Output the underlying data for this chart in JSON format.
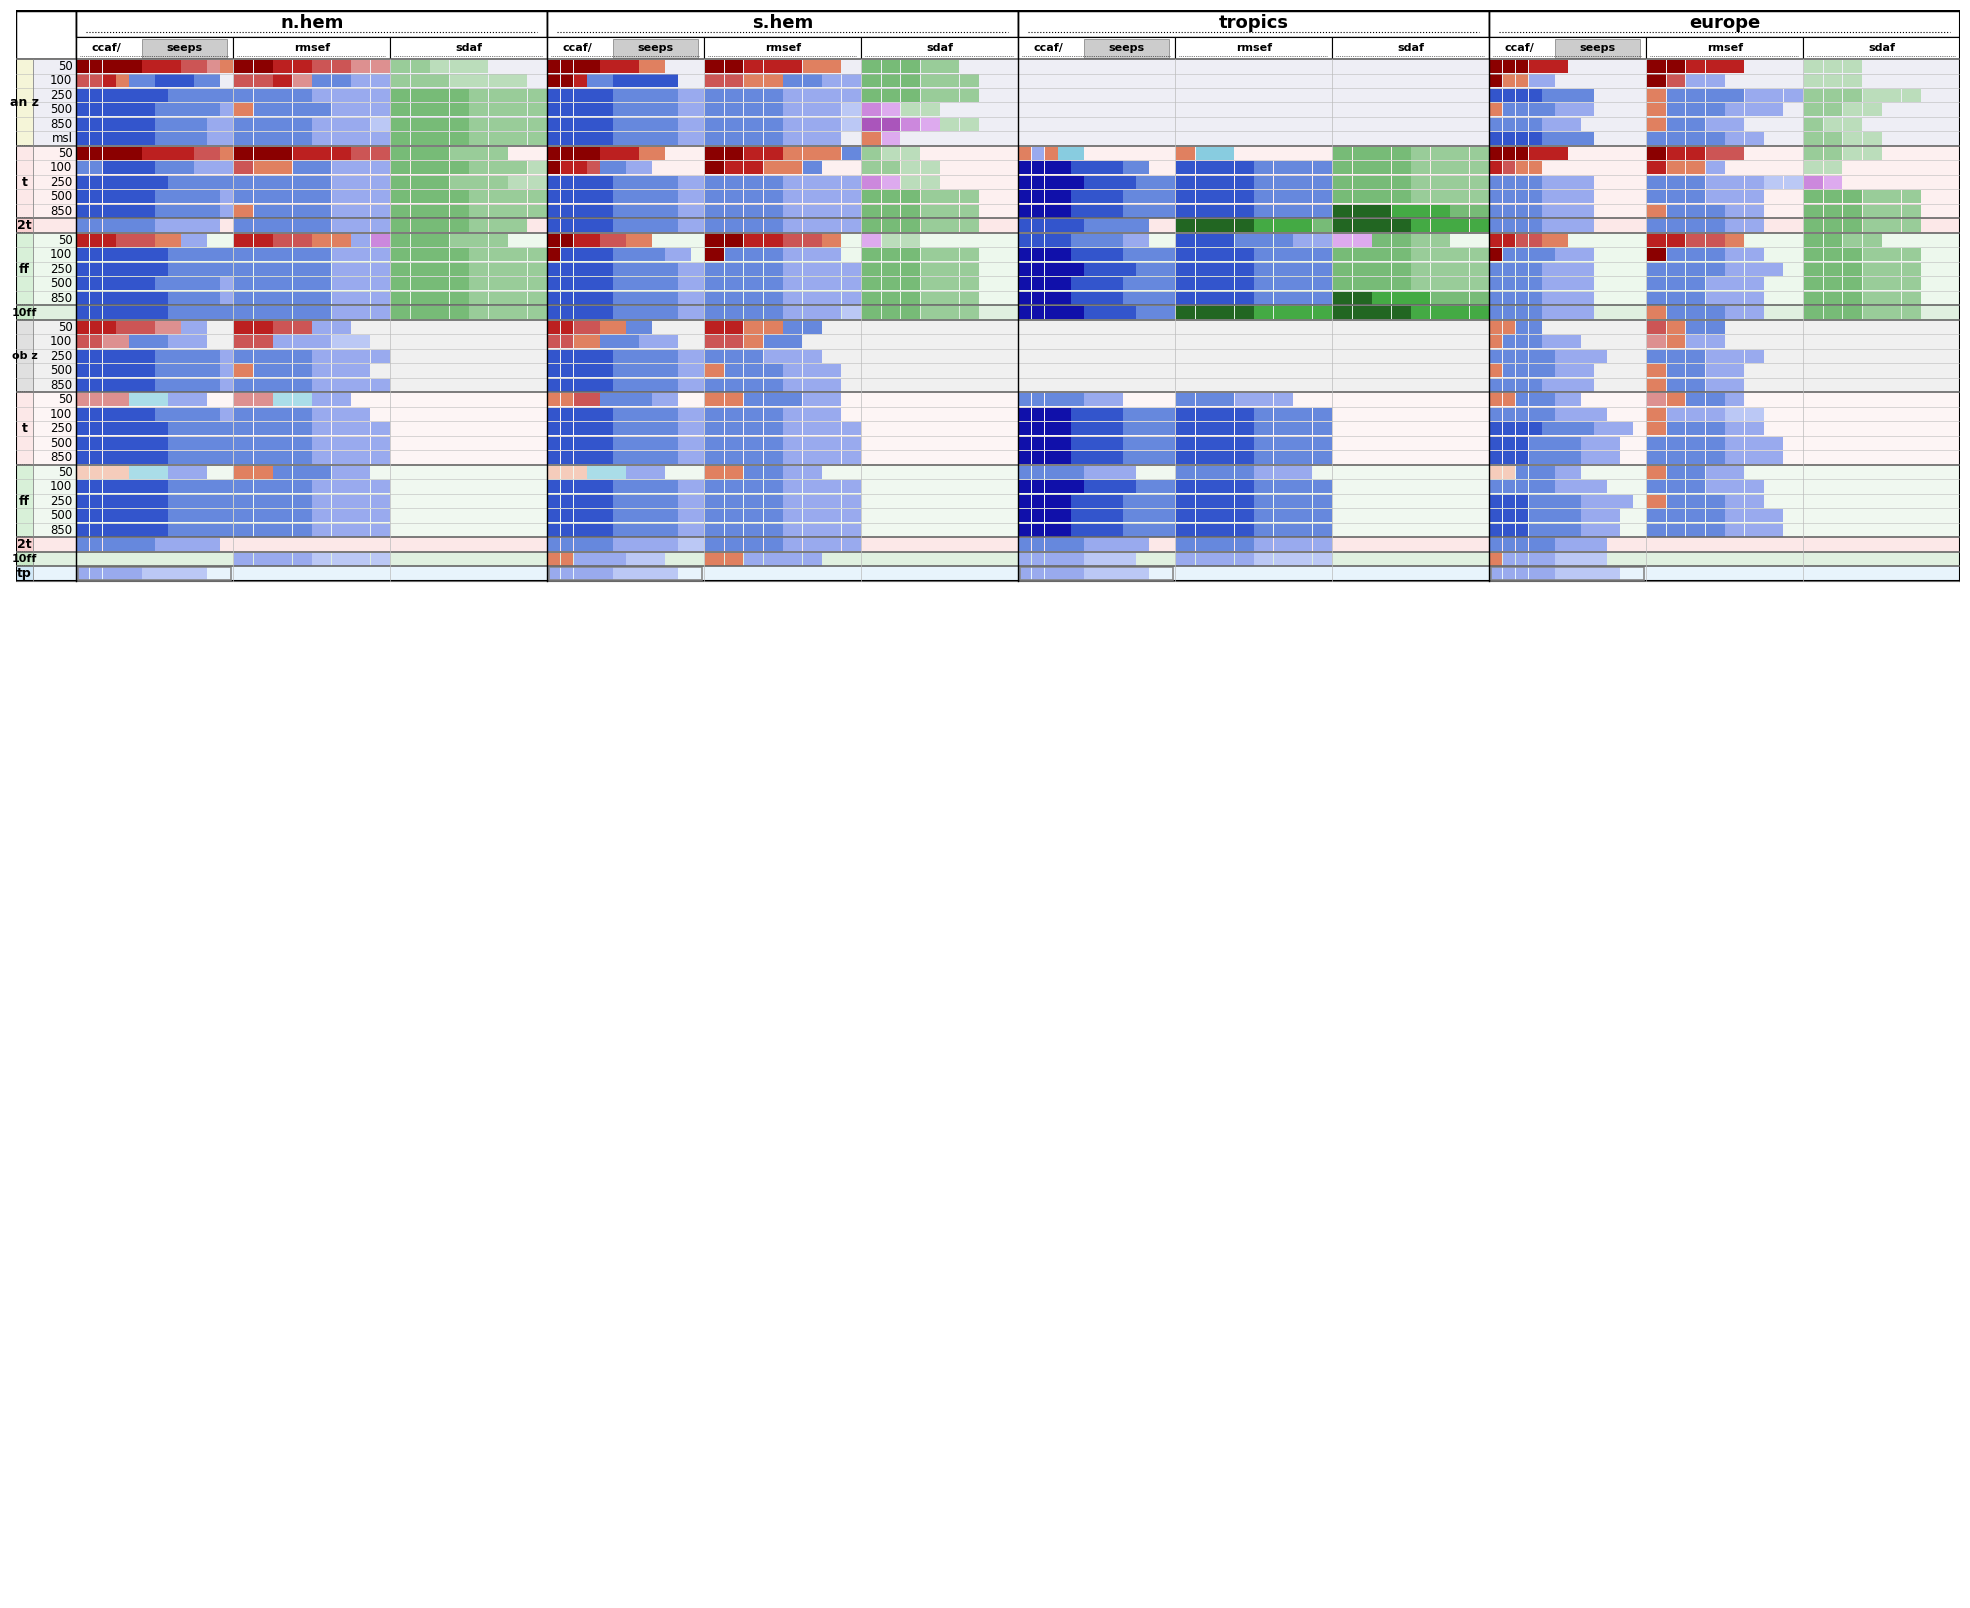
{
  "fig_width": 19.44,
  "fig_height": 15.88,
  "regions": [
    "n.hem",
    "s.hem",
    "tropics",
    "europe"
  ],
  "col_groups": [
    "ccaf/seeps",
    "rmsef",
    "sdaf"
  ],
  "sections": [
    {
      "label": "an z",
      "label_bg": "#f5f5d8",
      "row_bg": "#eeeef5",
      "rows": [
        "50",
        "100",
        "250",
        "500",
        "850",
        "msl"
      ]
    },
    {
      "label": "t",
      "label_bg": "#fce8e8",
      "row_bg": "#fdf0f0",
      "rows": [
        "50",
        "100",
        "250",
        "500",
        "850"
      ]
    },
    {
      "label": "2t",
      "label_bg": "#f8d0d0",
      "row_bg": "#fce8e8",
      "rows": [
        ""
      ]
    },
    {
      "label": "ff",
      "label_bg": "#d8f0d8",
      "row_bg": "#edf8ed",
      "rows": [
        "50",
        "100",
        "250",
        "500",
        "850"
      ]
    },
    {
      "label": "10ff",
      "label_bg": "#c8e8c8",
      "row_bg": "#e0f0e0",
      "rows": [
        ""
      ]
    },
    {
      "label": "ob z",
      "label_bg": "#e0e0e0",
      "row_bg": "#f0f0f0",
      "rows": [
        "50",
        "100",
        "250",
        "500",
        "850"
      ]
    },
    {
      "label": "t",
      "label_bg": "#fce8e8",
      "row_bg": "#fdf5f5",
      "rows": [
        "50",
        "100",
        "250",
        "500",
        "850"
      ]
    },
    {
      "label": "ff",
      "label_bg": "#d8f0d8",
      "row_bg": "#f0f8f0",
      "rows": [
        "50",
        "100",
        "250",
        "500",
        "850"
      ]
    },
    {
      "label": "2t",
      "label_bg": "#f8d0d0",
      "row_bg": "#fce8e8",
      "rows": [
        ""
      ]
    },
    {
      "label": "10ff",
      "label_bg": "#c8e8c8",
      "row_bg": "#e0f0e0",
      "rows": [
        ""
      ]
    },
    {
      "label": "tp",
      "label_bg": "#d0e8f8",
      "row_bg": "#e8f4fc",
      "rows": [
        ""
      ]
    }
  ]
}
